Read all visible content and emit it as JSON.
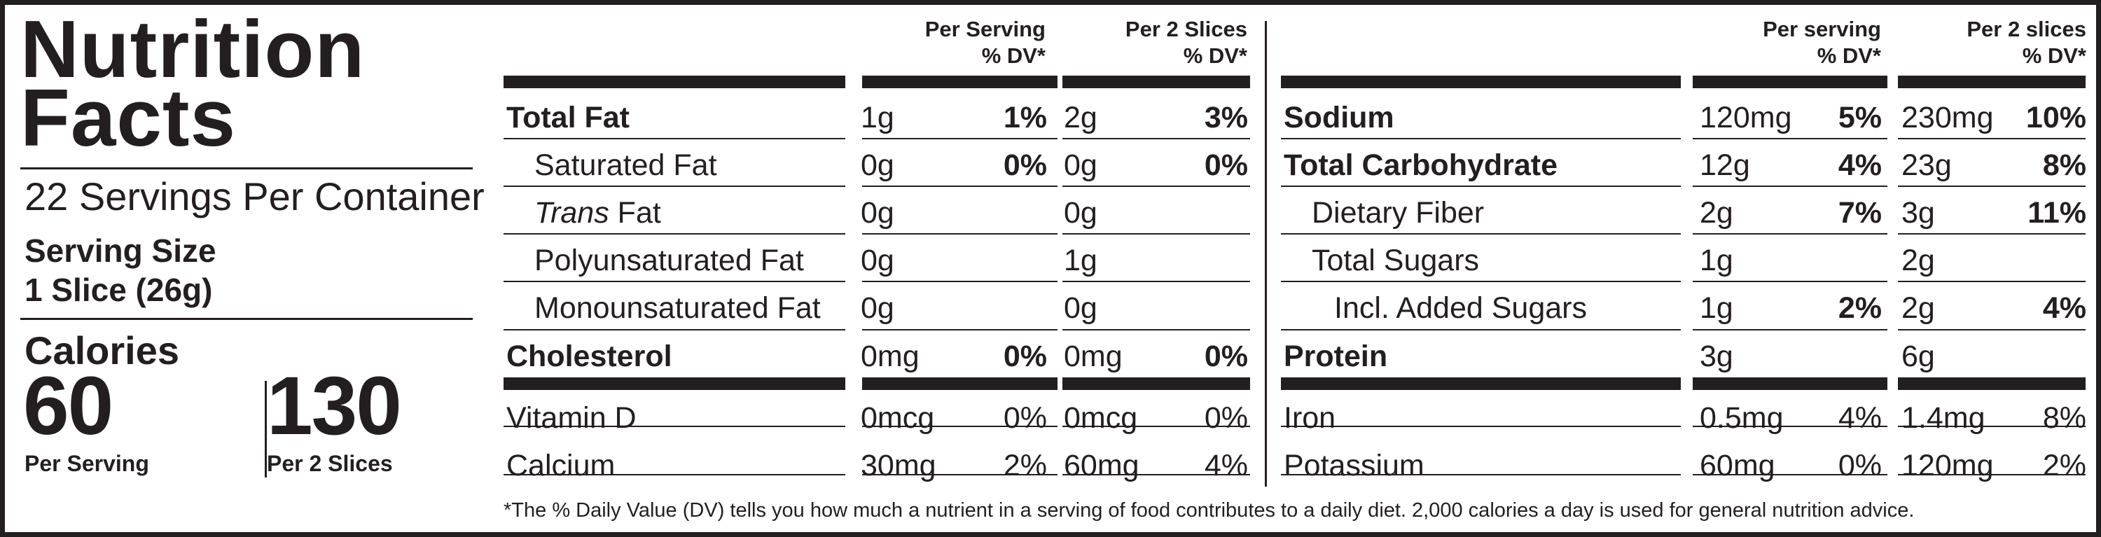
{
  "title_line1": "Nutrition",
  "title_line2": "Facts",
  "servings_per_container": "22 Servings Per Container",
  "serving_size_label": "Serving Size",
  "serving_size_value": "1 Slice (26g)",
  "calories_label": "Calories",
  "calories": [
    {
      "value": "60",
      "caption": "Per Serving"
    },
    {
      "value": "130",
      "caption": "Per 2 Slices"
    }
  ],
  "left_table": {
    "headers": [
      {
        "line1": "Per Serving",
        "line2": "% DV*"
      },
      {
        "line1": "Per 2 Slices",
        "line2": "% DV*"
      }
    ],
    "rows": [
      {
        "name": "Total Fat",
        "amt1": "1g",
        "dv1": "1%",
        "amt2": "2g",
        "dv2": "3%"
      },
      {
        "name": "Saturated Fat",
        "amt1": "0g",
        "dv1": "0%",
        "amt2": "0g",
        "dv2": "0%"
      },
      {
        "name_italic": "Trans",
        "name_rest": " Fat",
        "amt1": "0g",
        "dv1": "",
        "amt2": "0g",
        "dv2": ""
      },
      {
        "name": "Polyunsaturated Fat",
        "amt1": "0g",
        "dv1": "",
        "amt2": "1g",
        "dv2": ""
      },
      {
        "name": "Monounsaturated Fat",
        "amt1": "0g",
        "dv1": "",
        "amt2": "0g",
        "dv2": ""
      },
      {
        "name": "Cholesterol",
        "amt1": "0mg",
        "dv1": "0%",
        "amt2": "0mg",
        "dv2": "0%"
      },
      {
        "name": "Vitamin D",
        "amt1": "0mcg",
        "dv1": "0%",
        "amt2": "0mcg",
        "dv2": "0%"
      },
      {
        "name": "Calcium",
        "amt1": "30mg",
        "dv1": "2%",
        "amt2": "60mg",
        "dv2": "4%"
      }
    ]
  },
  "right_table": {
    "headers": [
      {
        "line1": "Per serving",
        "line2": "% DV*"
      },
      {
        "line1": "Per 2 slices",
        "line2": "% DV*"
      }
    ],
    "rows": [
      {
        "name": "Sodium",
        "amt1": "120mg",
        "dv1": "5%",
        "amt2": "230mg",
        "dv2": "10%"
      },
      {
        "name": "Total Carbohydrate",
        "amt1": "12g",
        "dv1": "4%",
        "amt2": "23g",
        "dv2": "8%"
      },
      {
        "name": "Dietary Fiber",
        "amt1": "2g",
        "dv1": "7%",
        "amt2": "3g",
        "dv2": "11%"
      },
      {
        "name": "Total Sugars",
        "amt1": "1g",
        "dv1": "",
        "amt2": "2g",
        "dv2": ""
      },
      {
        "name": "Incl. Added Sugars",
        "amt1": "1g",
        "dv1": "2%",
        "amt2": "2g",
        "dv2": "4%"
      },
      {
        "name": "Protein",
        "amt1": "3g",
        "dv1": "",
        "amt2": "6g",
        "dv2": ""
      },
      {
        "name": "Iron",
        "amt1": "0.5mg",
        "dv1": "4%",
        "amt2": "1.4mg",
        "dv2": "8%"
      },
      {
        "name": "Potassium",
        "amt1": "60mg",
        "dv1": "0%",
        "amt2": "120mg",
        "dv2": "2%"
      }
    ]
  },
  "footnote": "*The % Daily Value (DV) tells you how much a nutrient in a serving of food contributes to a daily diet. 2,000 calories a day is used for general nutrition advice.",
  "colors": {
    "ink": "#231f20",
    "background": "#ffffff"
  }
}
